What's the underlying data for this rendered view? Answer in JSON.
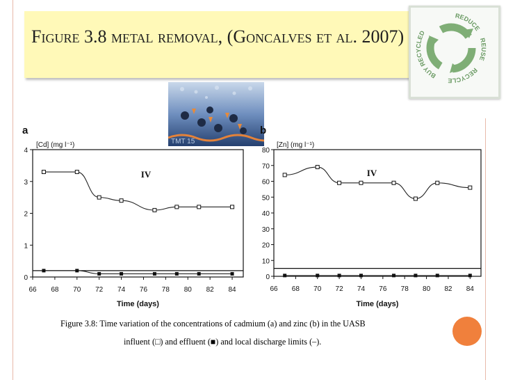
{
  "slide": {
    "title": "Figure 3.8 metal removal, (Goncalves et al. 2007)",
    "photo_label": "TMT 15",
    "recycle_words": [
      "REDUCE",
      "REUSE",
      "RECYCLE",
      "BUY RECYCLED"
    ]
  },
  "caption": {
    "line1": "Figure 3.8: Time variation of the concentrations of cadmium (a) and zinc (b) in the UASB",
    "line2": "influent (□) and effluent (■) and local discharge limits (–)."
  },
  "colors": {
    "accent": "#f0803c",
    "banner": "#fff9b8",
    "recycle_green": "#7fae76"
  },
  "chart_data": [
    {
      "panel_label": "a",
      "type": "line",
      "ylabel": "[Cd] (mg l⁻¹)",
      "xlabel": "Time (days)",
      "phase_label": "IV",
      "xlim": [
        66,
        85
      ],
      "ylim": [
        0,
        4
      ],
      "xticks": [
        66,
        68,
        70,
        72,
        74,
        76,
        78,
        80,
        82,
        84
      ],
      "yticks": [
        0,
        1,
        2,
        3,
        4
      ],
      "series": [
        {
          "marker": "open-square",
          "x": [
            67,
            70,
            72,
            74,
            77,
            79,
            81,
            84
          ],
          "y": [
            3.3,
            3.3,
            2.5,
            2.4,
            2.1,
            2.2,
            2.2,
            2.2
          ]
        },
        {
          "marker": "filled-square",
          "x": [
            67,
            70,
            72,
            74,
            77,
            79,
            81,
            84
          ],
          "y": [
            0.2,
            0.2,
            0.1,
            0.1,
            0.1,
            0.1,
            0.1,
            0.1
          ]
        }
      ],
      "limit": 0.2
    },
    {
      "panel_label": "b",
      "type": "line",
      "ylabel": "[Zn] (mg l⁻¹)",
      "xlabel": "Time (days)",
      "phase_label": "IV",
      "xlim": [
        66,
        85
      ],
      "ylim": [
        0,
        80
      ],
      "xticks": [
        66,
        68,
        70,
        72,
        74,
        76,
        78,
        80,
        82,
        84
      ],
      "yticks": [
        0,
        10,
        20,
        30,
        40,
        50,
        60,
        70,
        80
      ],
      "series": [
        {
          "marker": "open-square",
          "x": [
            67,
            70,
            72,
            74,
            77,
            79,
            81,
            84
          ],
          "y": [
            64,
            69,
            59,
            59,
            59,
            49,
            59,
            56
          ]
        },
        {
          "marker": "filled-square",
          "x": [
            67,
            70,
            72,
            74,
            77,
            79,
            81,
            84
          ],
          "y": [
            0.5,
            0.5,
            0.5,
            0.5,
            0.5,
            0.5,
            0.5,
            0.5
          ]
        }
      ],
      "limit": 5
    }
  ]
}
